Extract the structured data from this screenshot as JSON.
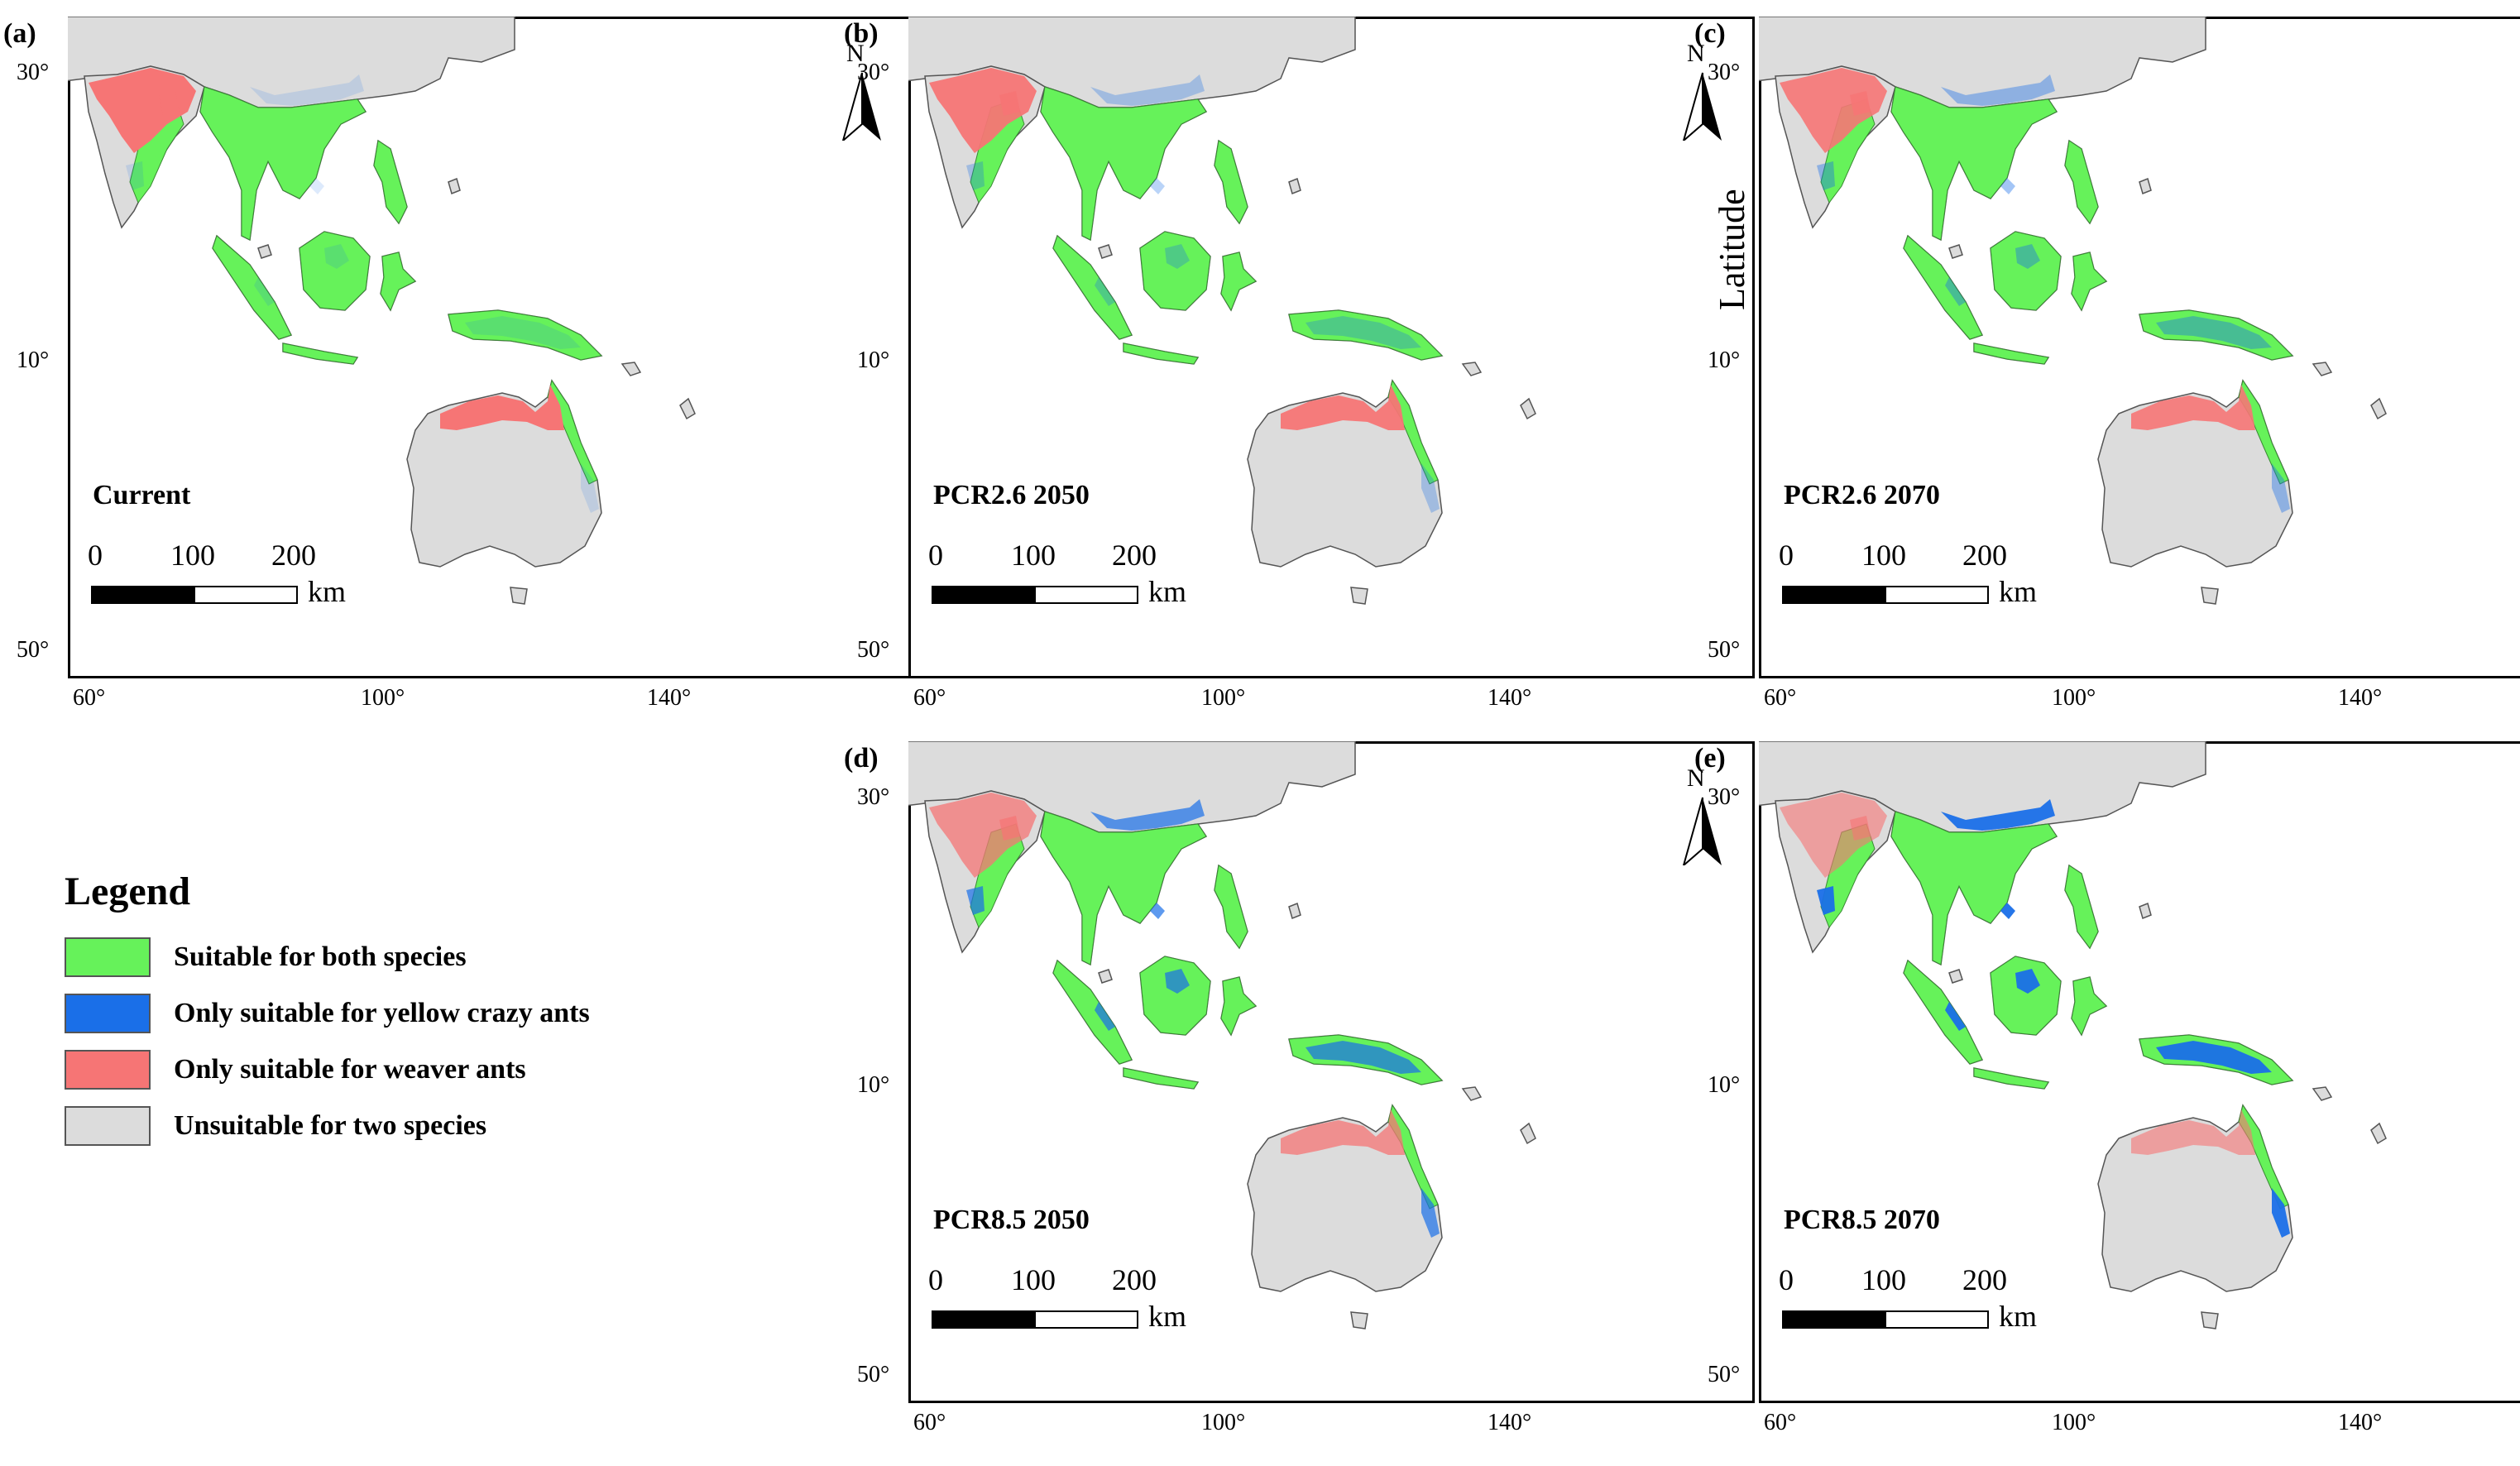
{
  "colors": {
    "both": "#66f25a",
    "yellow_crazy": "#1a6fe8",
    "weaver": "#f67575",
    "unsuitable": "#dcdcdc",
    "ocean": "#ffffff",
    "outline": "#555555"
  },
  "axis_ticks": {
    "lat": [
      "30°",
      "10°",
      "50°"
    ],
    "lon": [
      "60°",
      "100°",
      "140°"
    ]
  },
  "ylabel": "Latitude",
  "north_label": "N",
  "scale_bar": {
    "s0": "0",
    "s1": "100",
    "s2": "200",
    "unit": "km"
  },
  "panels": [
    {
      "id": "a",
      "label": "(a)",
      "title": "Current",
      "blue_level": 0.15,
      "red_level": 1.0
    },
    {
      "id": "b",
      "label": "(b)",
      "title": "PCR2.6 2050",
      "blue_level": 0.3,
      "red_level": 0.95
    },
    {
      "id": "c",
      "label": "(c)",
      "title": "PCR2.6 2070",
      "blue_level": 0.4,
      "red_level": 0.9
    },
    {
      "id": "d",
      "label": "(d)",
      "title": "PCR8.5 2050",
      "blue_level": 0.7,
      "red_level": 0.75
    },
    {
      "id": "e",
      "label": "(e)",
      "title": "PCR8.5 2070",
      "blue_level": 0.95,
      "red_level": 0.6
    }
  ],
  "legend": {
    "title": "Legend",
    "items": [
      {
        "label": "Suitable for both species",
        "color_key": "both"
      },
      {
        "label": "Only suitable for yellow crazy ants",
        "color_key": "yellow_crazy"
      },
      {
        "label": "Only suitable for weaver ants",
        "color_key": "weaver"
      },
      {
        "label": "Unsuitable for two species",
        "color_key": "unsuitable"
      }
    ]
  }
}
